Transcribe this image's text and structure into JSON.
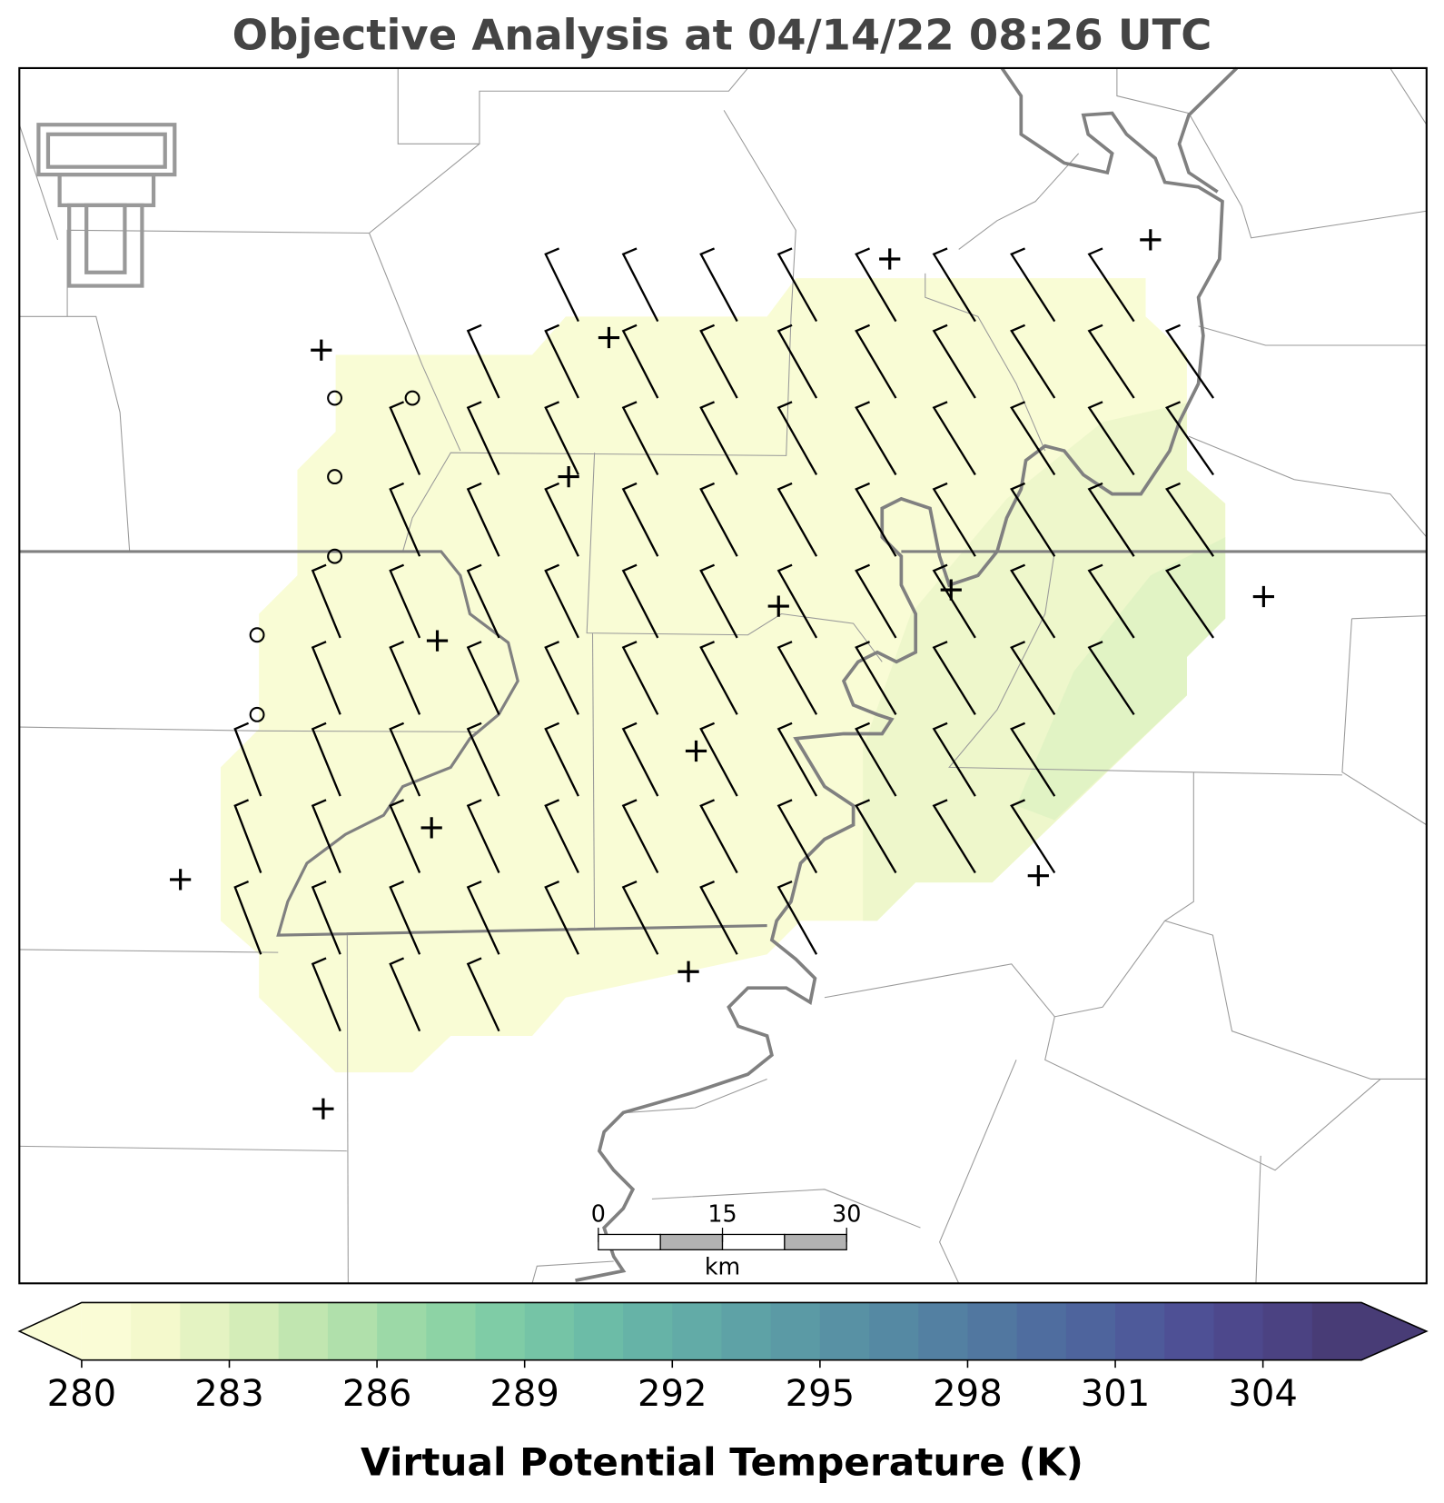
{
  "title": "Objective Analysis at 04/14/22 08:26 UTC",
  "colorbar": {
    "label": "Virtual Potential Temperature (K)",
    "lim": [
      280,
      306
    ],
    "ticks": [
      280,
      283,
      286,
      289,
      292,
      295,
      298,
      301,
      304
    ],
    "colors": [
      "#fafcd6",
      "#f4f9cc",
      "#e4f3c2",
      "#d4edb8",
      "#c1e6b0",
      "#b0e0ab",
      "#9cd9a7",
      "#8dd3a5",
      "#7fcca6",
      "#75c4a6",
      "#6cbca7",
      "#66b3a7",
      "#62aba7",
      "#5ea2a6",
      "#5b9aa5",
      "#5891a4",
      "#5589a3",
      "#5380a2",
      "#5177a0",
      "#4f6d9f",
      "#4e649d",
      "#4e5a9a",
      "#4e5095",
      "#4d488c",
      "#4b4282",
      "#483c76"
    ]
  },
  "scale_bar": {
    "ticks": [
      0,
      15,
      30
    ],
    "unit": "km"
  }
}
